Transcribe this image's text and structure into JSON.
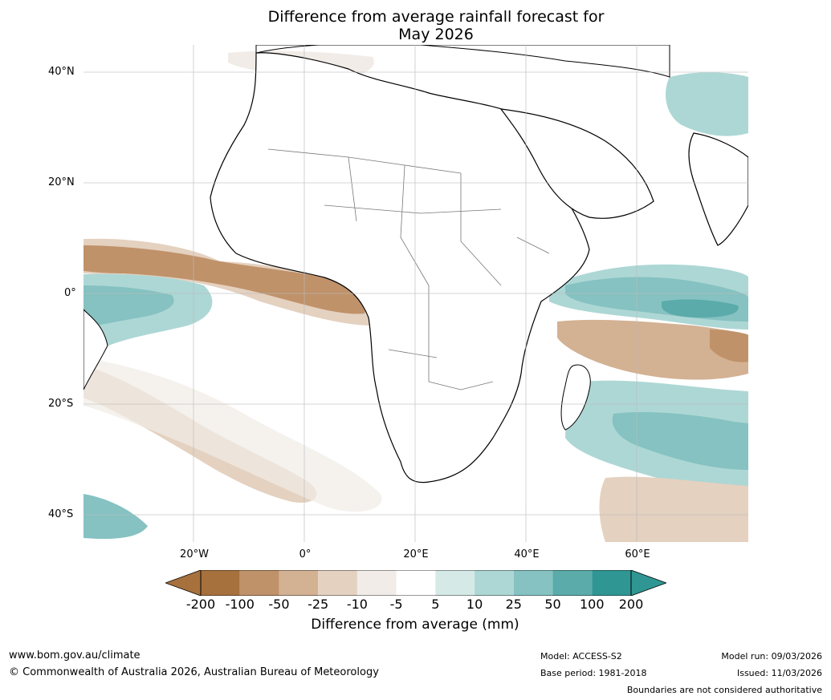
{
  "title": {
    "line1": "Difference from average rainfall forecast for",
    "line2": "May 2026"
  },
  "axes": {
    "lat_labels": [
      "40°N",
      "20°N",
      "0°",
      "20°S",
      "40°S"
    ],
    "lon_labels": [
      "20°W",
      "0°",
      "20°E",
      "40°E",
      "60°E"
    ]
  },
  "colorbar": {
    "ticks": [
      "-200",
      "-100",
      "-50",
      "-25",
      "-10",
      "-5",
      "5",
      "10",
      "25",
      "50",
      "100",
      "200"
    ],
    "colors": [
      "#a6713d",
      "#a6713d",
      "#c0926a",
      "#d3b193",
      "#e4d1c0",
      "#f1ece7",
      "#ffffff",
      "#d5e9e7",
      "#add7d5",
      "#85c2c1",
      "#5aabaa",
      "#2f9693",
      "#2d8b88"
    ],
    "label": "Difference from average (mm)"
  },
  "footer": {
    "website": "www.bom.gov.au/climate",
    "copyright": "© Commonwealth of Australia 2026, Australian Bureau of Meteorology",
    "model": "Model: ACCESS-S2",
    "base_period": "Base period: 1981-2018",
    "model_run": "Model run: 09/03/2026",
    "issued": "Issued: 11/03/2026",
    "disclaimer": "Boundaries are not considered authoritative"
  },
  "colors": {
    "dry_strong": "#a6713d",
    "dry_mid": "#c0926a",
    "dry_light": "#d3b193",
    "dry_faint": "#e4d1c0",
    "dry_veryfaint": "#f1ece7",
    "wet_veryfaint": "#d5e9e7",
    "wet_light": "#add7d5",
    "wet_mid": "#85c2c1",
    "wet_strong": "#5aabaa",
    "wet_verystrong": "#2f9693",
    "gridline": "#bbbbbb",
    "coast": "#000000",
    "border": "#777777"
  }
}
